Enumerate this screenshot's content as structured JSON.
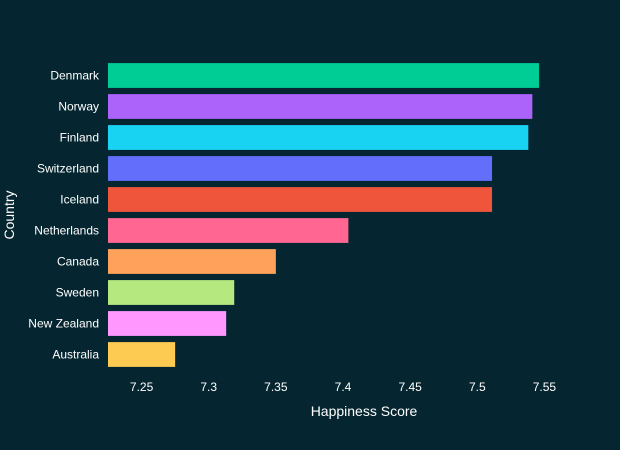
{
  "chart_data": {
    "type": "bar",
    "orientation": "horizontal",
    "title": "",
    "xlabel": "Happiness Score",
    "ylabel": "Country",
    "categories": [
      "Denmark",
      "Norway",
      "Finland",
      "Switzerland",
      "Iceland",
      "Netherlands",
      "Canada",
      "Sweden",
      "New Zealand",
      "Australia"
    ],
    "values": [
      7.546,
      7.541,
      7.538,
      7.511,
      7.511,
      7.404,
      7.35,
      7.319,
      7.313,
      7.275
    ],
    "colors": [
      "#00cc96",
      "#ab63fa",
      "#19d3f3",
      "#636efa",
      "#ef553b",
      "#ff6692",
      "#ffa15a",
      "#b6e880",
      "#ff97ff",
      "#fecb52"
    ],
    "xlim": [
      7.225,
      7.575
    ],
    "xticks": [
      7.25,
      7.3,
      7.35,
      7.4,
      7.45,
      7.5,
      7.55
    ],
    "xtick_labels": [
      "7.25",
      "7.3",
      "7.35",
      "7.4",
      "7.45",
      "7.5",
      "7.55"
    ],
    "grid": false,
    "legend": "none",
    "background": "#052630"
  }
}
